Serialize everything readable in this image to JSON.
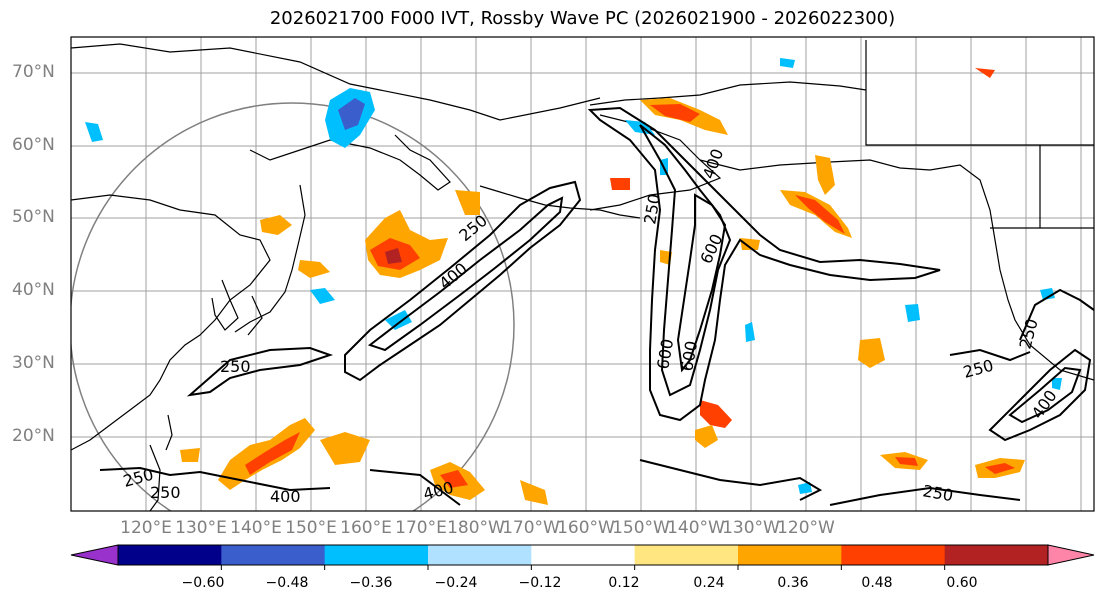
{
  "title": "2026021700 F000 IVT, Rossby Wave PC (2026021900 - 2026022300)",
  "lat_labels": [
    "70°N",
    "60°N",
    "50°N",
    "40°N",
    "30°N",
    "20°N"
  ],
  "lon_labels": [
    "120°E",
    "130°E",
    "140°E",
    "150°E",
    "160°E",
    "170°E",
    "180°W",
    "170°W",
    "160°W",
    "150°W",
    "140°W",
    "130°W",
    "120°W"
  ],
  "colorbar": {
    "colors": [
      "#9932cc",
      "#00008b",
      "#3a5fcd",
      "#00bfff",
      "#b0e2ff",
      "#ffffff",
      "#ffe680",
      "#ffa500",
      "#ff4000",
      "#b22222",
      "#ff85a8"
    ],
    "tick_labels": [
      "−0.60",
      "−0.48",
      "−0.36",
      "−0.24",
      "−0.12",
      "0.12",
      "0.24",
      "0.36",
      "0.48",
      "0.60"
    ]
  },
  "contour_labels": [
    "250",
    "400",
    "250",
    "400",
    "250",
    "400",
    "250",
    "600",
    "600",
    "600",
    "250",
    "400",
    "250",
    "400",
    "250",
    "250"
  ]
}
